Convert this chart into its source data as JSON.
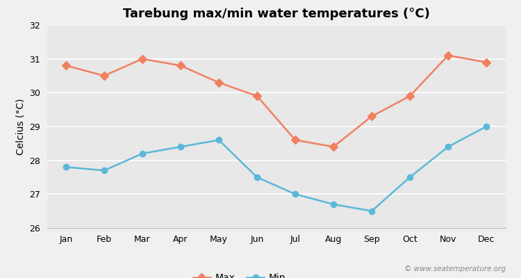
{
  "title": "Tarebung max/min water temperatures (°C)",
  "ylabel": "Celcius (°C)",
  "months": [
    "Jan",
    "Feb",
    "Mar",
    "Apr",
    "May",
    "Jun",
    "Jul",
    "Aug",
    "Sep",
    "Oct",
    "Nov",
    "Dec"
  ],
  "max_values": [
    30.8,
    30.5,
    31.0,
    30.8,
    30.3,
    29.9,
    28.6,
    28.4,
    29.3,
    29.9,
    31.1,
    30.9
  ],
  "min_values": [
    27.8,
    27.7,
    28.2,
    28.4,
    28.6,
    27.5,
    27.0,
    26.7,
    26.5,
    27.5,
    28.4,
    29.0
  ],
  "max_color": "#f08060",
  "min_color": "#5ab8d8",
  "background_color": "#f0f0f0",
  "plot_bg_color": "#e8e8e8",
  "ylim": [
    26,
    32
  ],
  "yticks": [
    26,
    27,
    28,
    29,
    30,
    31,
    32
  ],
  "title_fontsize": 13,
  "axis_label_fontsize": 10,
  "tick_fontsize": 9,
  "legend_labels": [
    "Max",
    "Min"
  ],
  "watermark": "© www.seatemperature.org"
}
